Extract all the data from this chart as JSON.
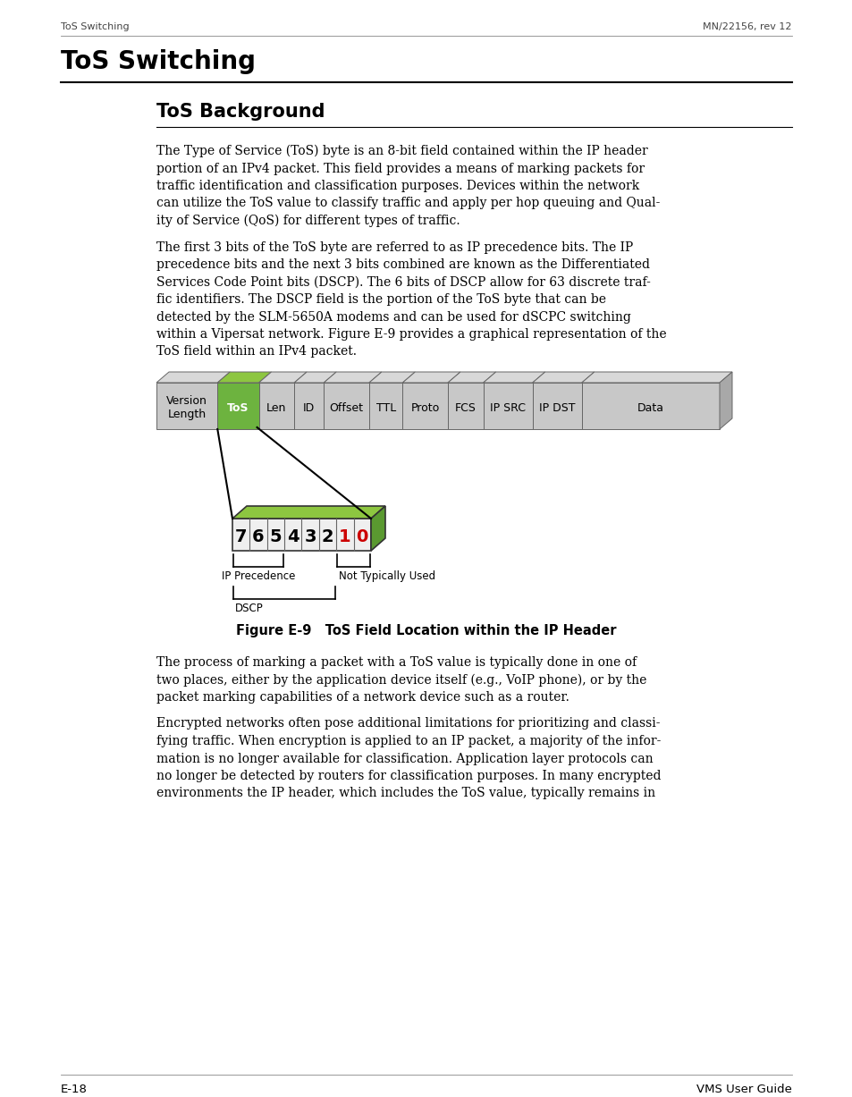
{
  "page_header_left": "ToS Switching",
  "page_header_right": "MN/22156, rev 12",
  "main_title": "ToS Switching",
  "section_title": "ToS Background",
  "body_text_1": [
    "The Type of Service (ToS) byte is an 8-bit field contained within the IP header",
    "portion of an IPv4 packet. This field provides a means of marking packets for",
    "traffic identification and classification purposes. Devices within the network",
    "can utilize the ToS value to classify traffic and apply per hop queuing and Qual-",
    "ity of Service (QoS) for different types of traffic."
  ],
  "body_text_2": [
    "The first 3 bits of the ToS byte are referred to as IP precedence bits. The IP",
    "precedence bits and the next 3 bits combined are known as the Differentiated",
    "Services Code Point bits (DSCP). The 6 bits of DSCP allow for 63 discrete traf-",
    "fic identifiers. The DSCP field is the portion of the ToS byte that can be",
    "detected by the SLM-5650A modems and can be used for dSCPC switching",
    "within a Vipersat network. Figure E-9 provides a graphical representation of the",
    "ToS field within an IPv4 packet."
  ],
  "figure_caption": "Figure E-9   ToS Field Location within the IP Header",
  "body_text_3": [
    "The process of marking a packet with a ToS value is typically done in one of",
    "two places, either by the application device itself (e.g., VoIP phone), or by the",
    "packet marking capabilities of a network device such as a router."
  ],
  "body_text_4": [
    "Encrypted networks often pose additional limitations for prioritizing and classi-",
    "fying traffic. When encryption is applied to an IP packet, a majority of the infor-",
    "mation is no longer available for classification. Application layer protocols can",
    "no longer be detected by routers for classification purposes. In many encrypted",
    "environments the IP header, which includes the ToS value, typically remains in"
  ],
  "page_footer_left": "E-18",
  "page_footer_right": "VMS User Guide",
  "header_fields": [
    "Version\nLength",
    "ToS",
    "Len",
    "ID",
    "Offset",
    "TTL",
    "Proto",
    "FCS",
    "IP SRC",
    "IP DST",
    "Data"
  ],
  "cell_widths_rel": [
    62,
    42,
    36,
    30,
    46,
    34,
    46,
    36,
    50,
    50,
    140
  ],
  "tos_green": "#6db33f",
  "tos_green_top": "#8dc640",
  "tos_green_side": "#5a9930",
  "gray_cell": "#c8c8c8",
  "gray_top": "#d8d8d8",
  "gray_side": "#a8a8a8",
  "bit_labels": [
    "7",
    "6",
    "5",
    "4",
    "3",
    "2",
    "1",
    "0"
  ],
  "bit_colors": [
    "#000000",
    "#000000",
    "#000000",
    "#000000",
    "#000000",
    "#000000",
    "#cc0000",
    "#cc0000"
  ],
  "background": "#ffffff",
  "text_color": "#000000",
  "header_color": "#555555"
}
